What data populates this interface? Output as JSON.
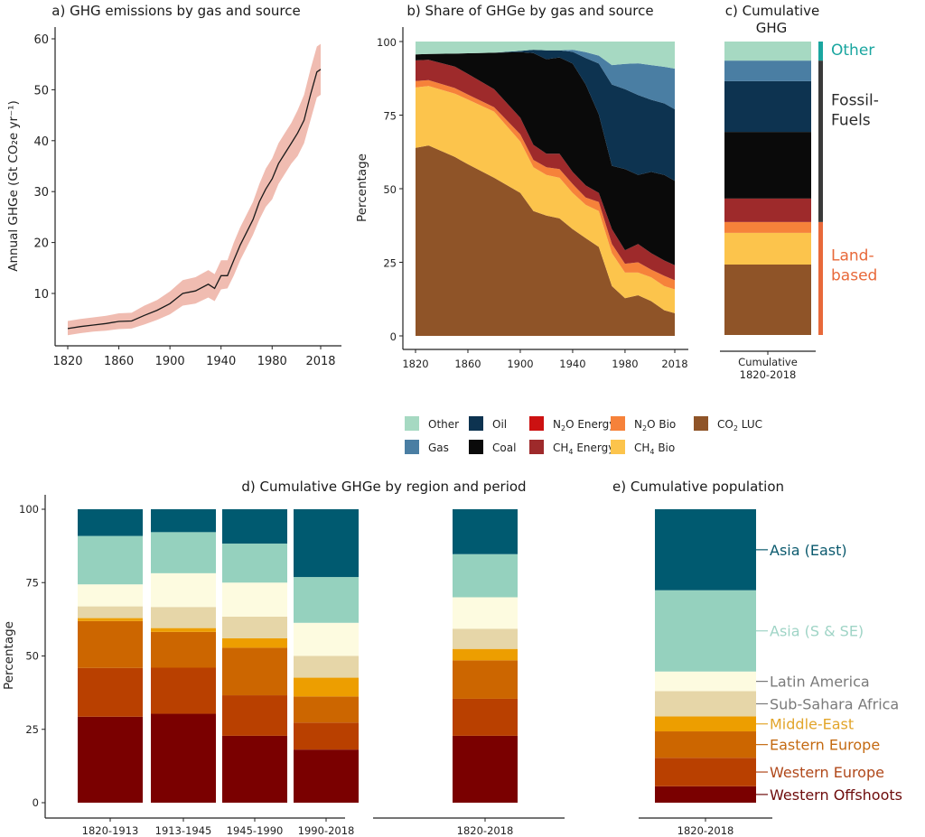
{
  "chart_data": [
    {
      "id": "a",
      "type": "line",
      "title": "a) GHG emissions by gas and source",
      "xlabel": "",
      "ylabel": "Annual GHGe (Gt CO₂e yr⁻¹)",
      "xlim": [
        1820,
        2018
      ],
      "ylim": [
        0,
        62
      ],
      "xticks": [
        1820,
        1860,
        1900,
        1940,
        1980,
        2018
      ],
      "yticks": [
        10,
        20,
        30,
        40,
        50,
        60
      ],
      "grid": false,
      "line_color": "#1a1a1a",
      "band_color": "#f0bcb1",
      "x": [
        1820,
        1830,
        1840,
        1850,
        1860,
        1870,
        1880,
        1890,
        1900,
        1910,
        1920,
        1930,
        1935,
        1940,
        1945,
        1950,
        1955,
        1960,
        1965,
        1970,
        1975,
        1980,
        1985,
        1990,
        1995,
        2000,
        2005,
        2010,
        2015,
        2018
      ],
      "y": [
        3.1,
        3.5,
        3.8,
        4.1,
        4.5,
        4.6,
        5.7,
        6.7,
        8.0,
        10.0,
        10.5,
        11.8,
        11.0,
        13.5,
        13.5,
        16.5,
        19.5,
        22.0,
        24.5,
        28.0,
        30.5,
        32.5,
        35.5,
        37.5,
        39.5,
        41.5,
        44.0,
        49.0,
        53.5,
        54.0
      ],
      "lower": [
        1.8,
        2.2,
        2.5,
        2.7,
        3.0,
        3.1,
        3.9,
        4.8,
        5.9,
        7.6,
        8.0,
        9.2,
        8.5,
        10.8,
        11.0,
        13.5,
        16.5,
        19.0,
        21.5,
        24.5,
        27.0,
        28.5,
        31.5,
        33.5,
        35.5,
        37.0,
        39.5,
        44.0,
        48.5,
        49.0
      ],
      "upper": [
        4.6,
        5.0,
        5.3,
        5.6,
        6.1,
        6.2,
        7.6,
        8.7,
        10.4,
        12.6,
        13.2,
        14.6,
        13.8,
        16.5,
        16.5,
        20.0,
        23.0,
        25.5,
        28.0,
        31.5,
        34.5,
        36.5,
        39.5,
        41.5,
        43.5,
        46.0,
        49.0,
        54.0,
        58.5,
        59.0
      ]
    },
    {
      "id": "b",
      "type": "area",
      "stacked": true,
      "title": "b) Share of GHGe by gas and source",
      "xlabel": "",
      "ylabel": "Percentage",
      "xlim": [
        1820,
        2018
      ],
      "ylim": [
        0,
        100
      ],
      "xticks": [
        1820,
        1860,
        1900,
        1940,
        1980,
        2018
      ],
      "yticks": [
        0,
        25,
        50,
        75,
        100
      ],
      "grid": false,
      "x": [
        1820,
        1830,
        1850,
        1860,
        1880,
        1900,
        1910,
        1920,
        1930,
        1940,
        1950,
        1960,
        1970,
        1980,
        1990,
        2000,
        2010,
        2018
      ],
      "series": [
        {
          "name": "CO2 LUC",
          "color": "#8f5428",
          "values": [
            63.9,
            64.7,
            60.8,
            58.3,
            53.7,
            48.6,
            42.4,
            40.9,
            39.9,
            36.3,
            33.2,
            30.2,
            16.9,
            12.8,
            13.8,
            11.8,
            8.7,
            7.7
          ]
        },
        {
          "name": "CH4 Bio",
          "color": "#fcc44c",
          "values": [
            20.5,
            20.2,
            21.5,
            22.0,
            22.5,
            17.4,
            14.9,
            13.8,
            13.8,
            12.3,
            11.3,
            12.2,
            11.2,
            8.7,
            7.7,
            8.1,
            8.2,
            8.1
          ]
        },
        {
          "name": "N2O Bio",
          "color": "#f6823a",
          "values": [
            2.2,
            2.0,
            1.9,
            1.7,
            1.5,
            2.5,
            2.5,
            2.6,
            3.0,
            3.0,
            2.5,
            3.1,
            3.1,
            3.0,
            3.5,
            2.6,
            3.5,
            3.1
          ]
        },
        {
          "name": "N2O Energy",
          "color": "#cc1111",
          "values": [
            0,
            0,
            0,
            0,
            0,
            0,
            0,
            0,
            0,
            0,
            0,
            0,
            0,
            0,
            0,
            0,
            0,
            0
          ]
        },
        {
          "name": "CH4 Energy",
          "color": "#9e2a2b",
          "values": [
            7.0,
            6.9,
            7.3,
            7.0,
            6.1,
            5.6,
            5.1,
            4.6,
            5.2,
            4.1,
            4.1,
            3.1,
            5.1,
            4.6,
            6.2,
            5.6,
            5.2,
            5.1
          ]
        },
        {
          "name": "Coal",
          "color": "#0a0a0a",
          "values": [
            2.0,
            2.0,
            4.4,
            7.0,
            12.4,
            22.3,
            31.2,
            32.1,
            32.7,
            36.8,
            34.3,
            26.6,
            21.5,
            27.6,
            23.5,
            27.6,
            29.1,
            28.7
          ]
        },
        {
          "name": "Oil",
          "color": "#0d3350",
          "values": [
            0,
            0,
            0,
            0,
            0,
            0.4,
            1.1,
            3.0,
            2.4,
            4.0,
            9.0,
            17.3,
            27.6,
            27.1,
            27.1,
            24.5,
            24.3,
            24.3
          ]
        },
        {
          "name": "Gas",
          "color": "#4a7ea3",
          "values": [
            0,
            0,
            0,
            0,
            0,
            0,
            0,
            0,
            0,
            0.7,
            2.0,
            2.7,
            6.6,
            8.6,
            10.8,
            11.8,
            12.4,
            13.8
          ]
        },
        {
          "name": "Other",
          "color": "#a6d9c2",
          "values": [
            4.4,
            4.2,
            4.1,
            4.0,
            3.8,
            3.2,
            2.8,
            3.0,
            3.0,
            2.8,
            3.6,
            4.8,
            8.0,
            7.6,
            7.4,
            8.0,
            8.6,
            9.2
          ]
        }
      ]
    },
    {
      "id": "c",
      "type": "bar",
      "stacked": true,
      "title": "c) Cumulative GHG",
      "title_lines": [
        "c) Cumulative",
        "GHG"
      ],
      "categories": [
        "Cumulative 1820-2018"
      ],
      "category_lines": [
        "Cumulative",
        "1820-2018"
      ],
      "ylim": [
        0,
        100
      ],
      "series": [
        {
          "name": "CO2 LUC",
          "color": "#8f5428",
          "values": [
            24.0
          ]
        },
        {
          "name": "CH4 Bio",
          "color": "#fcc44c",
          "values": [
            10.8
          ]
        },
        {
          "name": "N2O Bio",
          "color": "#f6823a",
          "values": [
            3.7
          ]
        },
        {
          "name": "CH4 Energy",
          "color": "#9e2a2b",
          "values": [
            8.0
          ]
        },
        {
          "name": "Coal",
          "color": "#0a0a0a",
          "values": [
            22.7
          ]
        },
        {
          "name": "Oil",
          "color": "#0d3350",
          "values": [
            17.3
          ]
        },
        {
          "name": "Gas",
          "color": "#4a7ea3",
          "values": [
            7.0
          ]
        },
        {
          "name": "Other",
          "color": "#a6d9c2",
          "values": [
            6.5
          ]
        }
      ],
      "groups": [
        {
          "label_lines": [
            "Land-",
            "based"
          ],
          "color": "#e8693a",
          "from": 0,
          "to": 38.5
        },
        {
          "label_lines": [
            "Fossil-",
            "Fuels"
          ],
          "color": "#3a3a3a",
          "from": 38.5,
          "to": 93.5
        },
        {
          "label_lines": [
            "Other"
          ],
          "color": "#1aa6a0",
          "from": 93.5,
          "to": 100
        }
      ]
    },
    {
      "id": "d",
      "type": "bar",
      "stacked": true,
      "title": "d) Cumulative GHGe by region and period",
      "ylabel": "Percentage",
      "ylim": [
        0,
        100
      ],
      "yticks": [
        0,
        25,
        50,
        75,
        100
      ],
      "categories": [
        "1820-1913",
        "1913-1945",
        "1945-1990",
        "1990-2018",
        "1820-2018"
      ],
      "series": [
        {
          "name": "Western Offshoots",
          "color": "#7a0000",
          "values": [
            29.3,
            30.3,
            22.8,
            18.1,
            22.8
          ]
        },
        {
          "name": "Western Europe",
          "color": "#b94000",
          "values": [
            16.6,
            15.7,
            13.8,
            9.2,
            12.6
          ]
        },
        {
          "name": "Eastern Europe",
          "color": "#cc6600",
          "values": [
            16.0,
            12.2,
            16.2,
            8.9,
            13.1
          ]
        },
        {
          "name": "Middle-East",
          "color": "#ed9e00",
          "values": [
            1.0,
            1.3,
            3.2,
            6.4,
            3.9
          ]
        },
        {
          "name": "Sub-Sahara Africa",
          "color": "#e6d6a8",
          "values": [
            4.0,
            7.2,
            7.4,
            7.4,
            6.9
          ]
        },
        {
          "name": "Latin America",
          "color": "#fdfbe0",
          "values": [
            7.5,
            11.5,
            11.6,
            11.3,
            10.7
          ]
        },
        {
          "name": "Asia (S & SE)",
          "color": "#95d1be",
          "values": [
            16.5,
            14.0,
            13.3,
            15.6,
            14.7
          ]
        },
        {
          "name": "Asia (East)",
          "color": "#005a70",
          "values": [
            9.1,
            7.8,
            11.7,
            23.1,
            15.3
          ]
        }
      ]
    },
    {
      "id": "e",
      "type": "bar",
      "stacked": true,
      "title": "e) Cumulative population",
      "ylim": [
        0,
        100
      ],
      "categories": [
        "1820-2018"
      ],
      "series": [
        {
          "name": "Western Offshoots",
          "color": "#7a0000",
          "label_color": "#6e0c0c",
          "values": [
            5.6
          ]
        },
        {
          "name": "Western Europe",
          "color": "#b94000",
          "label_color": "#b0481a",
          "values": [
            9.7
          ]
        },
        {
          "name": "Eastern Europe",
          "color": "#cc6600",
          "label_color": "#c46a12",
          "values": [
            9.0
          ]
        },
        {
          "name": "Middle-East",
          "color": "#ed9e00",
          "label_color": "#e2a52a",
          "values": [
            5.1
          ]
        },
        {
          "name": "Sub-Sahara Africa",
          "color": "#e6d6a8",
          "label_color": "#7a7a7a",
          "values": [
            8.6
          ]
        },
        {
          "name": "Latin America",
          "color": "#fdfbe0",
          "label_color": "#7a7a7a",
          "values": [
            6.7
          ]
        },
        {
          "name": "Asia (S & SE)",
          "color": "#95d1be",
          "label_color": "#9fd4c6",
          "values": [
            27.7
          ]
        },
        {
          "name": "Asia (East)",
          "color": "#005a70",
          "label_color": "#0b5a6e",
          "values": [
            27.6
          ]
        }
      ]
    }
  ],
  "legend": {
    "items": [
      {
        "name": "Other",
        "color": "#a6d9c2",
        "main": "Other"
      },
      {
        "name": "Gas",
        "color": "#4a7ea3",
        "main": "Gas"
      },
      {
        "name": "Oil",
        "color": "#0d3350",
        "main": "Oil"
      },
      {
        "name": "Coal",
        "color": "#0a0a0a",
        "main": "Coal"
      },
      {
        "name": "N2O Energy",
        "color": "#cc1111",
        "main": "N",
        "sub": "2",
        "rest": "O Energy"
      },
      {
        "name": "CH4 Energy",
        "color": "#9e2a2b",
        "main": "CH",
        "sub": "4",
        "rest": " Energy"
      },
      {
        "name": "N2O Bio",
        "color": "#f6823a",
        "main": "N",
        "sub": "2",
        "rest": "O Bio"
      },
      {
        "name": "CH4 Bio",
        "color": "#fcc44c",
        "main": "CH",
        "sub": "4",
        "rest": " Bio"
      },
      {
        "name": "CO2 LUC",
        "color": "#8f5428",
        "main": "CO",
        "sub": "2",
        "rest": " LUC"
      }
    ]
  }
}
